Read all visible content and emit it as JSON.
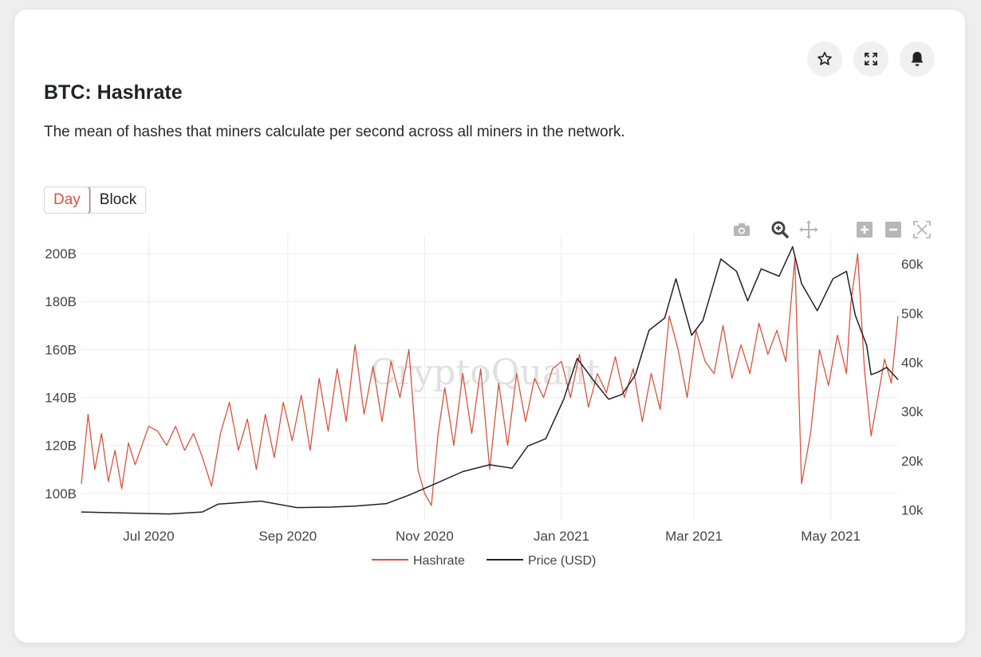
{
  "card": {
    "title": "BTC: Hashrate",
    "description": "The mean of hashes that miners calculate per second across all miners in the network."
  },
  "header_actions": [
    {
      "name": "favorite",
      "icon": "star-icon"
    },
    {
      "name": "expand",
      "icon": "expand-icon"
    },
    {
      "name": "alert",
      "icon": "bell-icon"
    }
  ],
  "toggle": {
    "options": [
      "Day",
      "Block"
    ],
    "selected": "Day"
  },
  "modebar": [
    "camera-icon",
    "zoom-icon",
    "pan-icon",
    "zoom-in-icon",
    "zoom-out-icon",
    "autoscale-icon"
  ],
  "watermark": "CryptoQuant",
  "colors": {
    "hashrate": "#d8533f",
    "price": "#222222",
    "accent": "#d8533f"
  },
  "chart_data": {
    "type": "line",
    "x_range": [
      "2020-06-01",
      "2021-05-31"
    ],
    "x_ticks": [
      {
        "date": "2020-07-01",
        "label": "Jul 2020"
      },
      {
        "date": "2020-09-01",
        "label": "Sep 2020"
      },
      {
        "date": "2020-11-01",
        "label": "Nov 2020"
      },
      {
        "date": "2021-01-01",
        "label": "Jan 2021"
      },
      {
        "date": "2021-03-01",
        "label": "Mar 2021"
      },
      {
        "date": "2021-05-01",
        "label": "May 2021"
      }
    ],
    "y_left": {
      "ticks": [
        100,
        120,
        140,
        160,
        180,
        200
      ],
      "tick_labels": [
        "100B",
        "120B",
        "140B",
        "160B",
        "180B",
        "200B"
      ],
      "range": [
        89,
        208
      ]
    },
    "y_right": {
      "ticks": [
        10,
        20,
        30,
        40,
        50,
        60
      ],
      "tick_labels": [
        "10k",
        "20k",
        "30k",
        "40k",
        "50k",
        "60k"
      ],
      "range": [
        8,
        66
      ]
    },
    "legend": {
      "placement": "bottom-center"
    },
    "grid": true,
    "series": [
      {
        "name": "Hashrate",
        "axis": "left",
        "unit": "B",
        "points": [
          [
            "2020-06-01",
            104
          ],
          [
            "2020-06-04",
            133
          ],
          [
            "2020-06-07",
            110
          ],
          [
            "2020-06-10",
            125
          ],
          [
            "2020-06-13",
            105
          ],
          [
            "2020-06-16",
            118
          ],
          [
            "2020-06-19",
            102
          ],
          [
            "2020-06-22",
            121
          ],
          [
            "2020-06-25",
            112
          ],
          [
            "2020-06-28",
            120
          ],
          [
            "2020-07-01",
            128
          ],
          [
            "2020-07-05",
            126
          ],
          [
            "2020-07-09",
            120
          ],
          [
            "2020-07-13",
            128
          ],
          [
            "2020-07-17",
            118
          ],
          [
            "2020-07-21",
            125
          ],
          [
            "2020-07-25",
            115
          ],
          [
            "2020-07-29",
            103
          ],
          [
            "2020-08-02",
            125
          ],
          [
            "2020-08-06",
            138
          ],
          [
            "2020-08-10",
            118
          ],
          [
            "2020-08-14",
            131
          ],
          [
            "2020-08-18",
            110
          ],
          [
            "2020-08-22",
            133
          ],
          [
            "2020-08-26",
            115
          ],
          [
            "2020-08-30",
            138
          ],
          [
            "2020-09-03",
            122
          ],
          [
            "2020-09-07",
            141
          ],
          [
            "2020-09-11",
            118
          ],
          [
            "2020-09-15",
            148
          ],
          [
            "2020-09-19",
            126
          ],
          [
            "2020-09-23",
            152
          ],
          [
            "2020-09-27",
            130
          ],
          [
            "2020-10-01",
            162
          ],
          [
            "2020-10-05",
            133
          ],
          [
            "2020-10-09",
            153
          ],
          [
            "2020-10-13",
            130
          ],
          [
            "2020-10-17",
            155
          ],
          [
            "2020-10-21",
            140
          ],
          [
            "2020-10-25",
            160
          ],
          [
            "2020-10-29",
            110
          ],
          [
            "2020-11-01",
            100
          ],
          [
            "2020-11-04",
            95
          ],
          [
            "2020-11-07",
            125
          ],
          [
            "2020-11-10",
            144
          ],
          [
            "2020-11-14",
            120
          ],
          [
            "2020-11-18",
            150
          ],
          [
            "2020-11-22",
            125
          ],
          [
            "2020-11-26",
            152
          ],
          [
            "2020-11-30",
            110
          ],
          [
            "2020-12-04",
            146
          ],
          [
            "2020-12-08",
            120
          ],
          [
            "2020-12-12",
            150
          ],
          [
            "2020-12-16",
            130
          ],
          [
            "2020-12-20",
            148
          ],
          [
            "2020-12-24",
            140
          ],
          [
            "2020-12-28",
            152
          ],
          [
            "2021-01-01",
            155
          ],
          [
            "2021-01-05",
            140
          ],
          [
            "2021-01-09",
            158
          ],
          [
            "2021-01-13",
            136
          ],
          [
            "2021-01-17",
            150
          ],
          [
            "2021-01-21",
            142
          ],
          [
            "2021-01-25",
            157
          ],
          [
            "2021-01-29",
            140
          ],
          [
            "2021-02-02",
            152
          ],
          [
            "2021-02-06",
            130
          ],
          [
            "2021-02-10",
            150
          ],
          [
            "2021-02-14",
            135
          ],
          [
            "2021-02-18",
            174
          ],
          [
            "2021-02-22",
            160
          ],
          [
            "2021-02-26",
            140
          ],
          [
            "2021-03-02",
            168
          ],
          [
            "2021-03-06",
            155
          ],
          [
            "2021-03-10",
            150
          ],
          [
            "2021-03-14",
            170
          ],
          [
            "2021-03-18",
            148
          ],
          [
            "2021-03-22",
            162
          ],
          [
            "2021-03-26",
            150
          ],
          [
            "2021-03-30",
            171
          ],
          [
            "2021-04-03",
            158
          ],
          [
            "2021-04-07",
            168
          ],
          [
            "2021-04-11",
            155
          ],
          [
            "2021-04-15",
            198
          ],
          [
            "2021-04-18",
            104
          ],
          [
            "2021-04-22",
            125
          ],
          [
            "2021-04-26",
            160
          ],
          [
            "2021-04-30",
            145
          ],
          [
            "2021-05-04",
            166
          ],
          [
            "2021-05-08",
            150
          ],
          [
            "2021-05-10",
            180
          ],
          [
            "2021-05-13",
            200
          ],
          [
            "2021-05-16",
            152
          ],
          [
            "2021-05-19",
            124
          ],
          [
            "2021-05-22",
            140
          ],
          [
            "2021-05-25",
            156
          ],
          [
            "2021-05-28",
            146
          ],
          [
            "2021-05-31",
            174
          ]
        ]
      },
      {
        "name": "Price (USD)",
        "axis": "right",
        "unit": "k",
        "points": [
          [
            "2020-06-01",
            9.6
          ],
          [
            "2020-06-20",
            9.4
          ],
          [
            "2020-07-10",
            9.2
          ],
          [
            "2020-07-25",
            9.6
          ],
          [
            "2020-08-01",
            11.2
          ],
          [
            "2020-08-20",
            11.8
          ],
          [
            "2020-09-05",
            10.5
          ],
          [
            "2020-09-20",
            10.6
          ],
          [
            "2020-10-01",
            10.8
          ],
          [
            "2020-10-15",
            11.3
          ],
          [
            "2020-10-25",
            13.0
          ],
          [
            "2020-11-05",
            15.2
          ],
          [
            "2020-11-18",
            17.8
          ],
          [
            "2020-11-30",
            19.2
          ],
          [
            "2020-12-10",
            18.5
          ],
          [
            "2020-12-17",
            23.0
          ],
          [
            "2020-12-25",
            24.5
          ],
          [
            "2021-01-02",
            32.5
          ],
          [
            "2021-01-08",
            40.8
          ],
          [
            "2021-01-15",
            36.5
          ],
          [
            "2021-01-22",
            32.5
          ],
          [
            "2021-01-28",
            33.5
          ],
          [
            "2021-02-03",
            37.5
          ],
          [
            "2021-02-09",
            46.5
          ],
          [
            "2021-02-16",
            49.0
          ],
          [
            "2021-02-21",
            57.0
          ],
          [
            "2021-02-28",
            45.5
          ],
          [
            "2021-03-05",
            48.5
          ],
          [
            "2021-03-13",
            61.0
          ],
          [
            "2021-03-20",
            58.5
          ],
          [
            "2021-03-25",
            52.5
          ],
          [
            "2021-03-31",
            59.0
          ],
          [
            "2021-04-08",
            57.5
          ],
          [
            "2021-04-14",
            63.5
          ],
          [
            "2021-04-18",
            56.0
          ],
          [
            "2021-04-25",
            50.5
          ],
          [
            "2021-05-02",
            57.0
          ],
          [
            "2021-05-08",
            58.5
          ],
          [
            "2021-05-12",
            49.5
          ],
          [
            "2021-05-17",
            43.5
          ],
          [
            "2021-05-19",
            37.5
          ],
          [
            "2021-05-22",
            38.0
          ],
          [
            "2021-05-26",
            39.0
          ],
          [
            "2021-05-31",
            36.5
          ]
        ]
      }
    ]
  }
}
